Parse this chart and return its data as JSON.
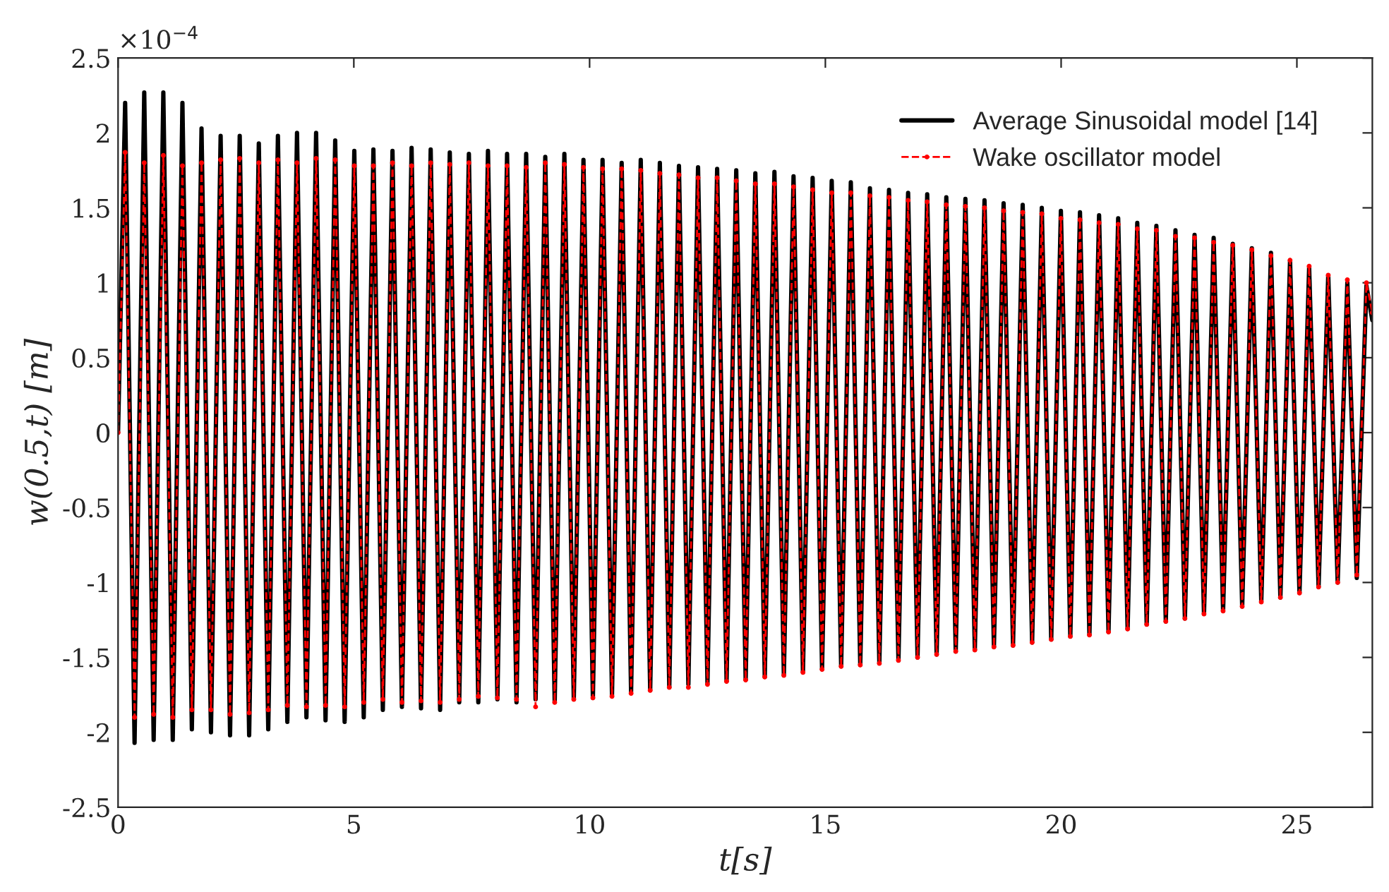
{
  "chart_data": {
    "type": "line",
    "xlabel": "t[s]",
    "ylabel": "w(0.5,t) [m]",
    "annotations": [
      "×10$^{−4}$"
    ],
    "xlim": [
      0,
      26.6
    ],
    "xticks": [
      0,
      5,
      10,
      15,
      20,
      25
    ],
    "ylim": [
      -2.5,
      2.5
    ],
    "yticks": [
      -2.5,
      -2,
      -1.5,
      -1,
      -0.5,
      0,
      0.5,
      1,
      1.5,
      2,
      2.5
    ],
    "grid": false,
    "legend": "top right",
    "x": [
      0,
      0.15,
      0.35,
      0.555,
      0.755,
      0.96,
      1.16,
      1.365,
      1.565,
      1.77,
      1.97,
      2.175,
      2.375,
      2.58,
      2.78,
      2.985,
      3.185,
      3.39,
      3.59,
      3.795,
      3.995,
      4.2,
      4.4,
      4.605,
      4.805,
      5.01,
      5.21,
      5.415,
      5.615,
      5.82,
      6.02,
      6.225,
      6.425,
      6.63,
      6.83,
      7.035,
      7.235,
      7.44,
      7.64,
      7.845,
      8.045,
      8.25,
      8.45,
      8.655,
      8.855,
      9.06,
      9.26,
      9.465,
      9.665,
      9.87,
      10.07,
      10.275,
      10.475,
      10.68,
      10.88,
      11.085,
      11.285,
      11.49,
      11.69,
      11.895,
      12.095,
      12.3,
      12.5,
      12.705,
      12.905,
      13.11,
      13.31,
      13.515,
      13.715,
      13.92,
      14.12,
      14.325,
      14.525,
      14.73,
      14.93,
      15.135,
      15.335,
      15.54,
      15.74,
      15.945,
      16.145,
      16.35,
      16.55,
      16.755,
      16.955,
      17.16,
      17.36,
      17.565,
      17.765,
      17.97,
      18.17,
      18.375,
      18.575,
      18.78,
      18.98,
      19.185,
      19.385,
      19.59,
      19.79,
      19.995,
      20.195,
      20.4,
      20.6,
      20.805,
      21.005,
      21.21,
      21.41,
      21.615,
      21.815,
      22.02,
      22.22,
      22.425,
      22.625,
      22.83,
      23.03,
      23.235,
      23.435,
      23.64,
      23.84,
      24.045,
      24.245,
      24.45,
      24.65,
      24.855,
      25.055,
      25.26,
      25.46,
      25.665,
      25.865,
      26.07,
      26.27,
      26.475,
      26.6
    ],
    "series": [
      {
        "name": "Average Sinusoidal model [14]",
        "color": "#000000",
        "line_style": "solid",
        "marker": "none",
        "values": [
          0,
          2.2,
          -2.07,
          2.27,
          -2.05,
          2.27,
          -2.05,
          2.2,
          -1.98,
          2.03,
          -2.0,
          1.98,
          -2.02,
          1.98,
          -2.02,
          1.93,
          -1.98,
          1.98,
          -1.93,
          2.0,
          -1.9,
          2.0,
          -1.92,
          1.95,
          -1.93,
          1.88,
          -1.9,
          1.89,
          -1.85,
          1.88,
          -1.83,
          1.9,
          -1.84,
          1.89,
          -1.85,
          1.87,
          -1.8,
          1.86,
          -1.8,
          1.88,
          -1.78,
          1.86,
          -1.8,
          1.86,
          -1.78,
          1.84,
          -1.8,
          1.86,
          -1.78,
          1.82,
          -1.77,
          1.82,
          -1.75,
          1.8,
          -1.73,
          1.82,
          -1.72,
          1.8,
          -1.7,
          1.78,
          -1.68,
          1.77,
          -1.67,
          1.76,
          -1.66,
          1.75,
          -1.65,
          1.73,
          -1.63,
          1.74,
          -1.62,
          1.71,
          -1.6,
          1.7,
          -1.58,
          1.68,
          -1.56,
          1.67,
          -1.55,
          1.63,
          -1.54,
          1.62,
          -1.52,
          1.6,
          -1.5,
          1.59,
          -1.48,
          1.57,
          -1.46,
          1.56,
          -1.45,
          1.55,
          -1.43,
          1.53,
          -1.42,
          1.52,
          -1.4,
          1.5,
          -1.38,
          1.48,
          -1.36,
          1.47,
          -1.35,
          1.45,
          -1.33,
          1.43,
          -1.31,
          1.4,
          -1.28,
          1.38,
          -1.26,
          1.35,
          -1.24,
          1.32,
          -1.21,
          1.3,
          -1.19,
          1.26,
          -1.16,
          1.23,
          -1.13,
          1.2,
          -1.1,
          1.15,
          -1.07,
          1.1,
          -1.03,
          1.05,
          -1.0,
          1.0,
          -0.97,
          0.98,
          0.75
        ]
      },
      {
        "name": "Wake oscillator model",
        "color": "#ff0000",
        "line_style": "dashed",
        "marker": "circle",
        "values": [
          0,
          1.87,
          -1.9,
          1.8,
          -1.88,
          1.85,
          -1.9,
          1.78,
          -1.85,
          1.8,
          -1.85,
          1.82,
          -1.88,
          1.83,
          -1.87,
          1.8,
          -1.85,
          1.82,
          -1.82,
          1.8,
          -1.83,
          1.83,
          -1.82,
          1.82,
          -1.83,
          1.78,
          -1.8,
          1.78,
          -1.78,
          1.8,
          -1.8,
          1.78,
          -1.79,
          1.8,
          -1.8,
          1.79,
          -1.78,
          1.8,
          -1.76,
          1.78,
          -1.77,
          1.78,
          -1.78,
          1.77,
          -1.83,
          1.8,
          -1.8,
          1.79,
          -1.78,
          1.77,
          -1.77,
          1.76,
          -1.76,
          1.76,
          -1.74,
          1.75,
          -1.72,
          1.73,
          -1.7,
          1.72,
          -1.7,
          1.7,
          -1.68,
          1.7,
          -1.66,
          1.68,
          -1.65,
          1.66,
          -1.63,
          1.66,
          -1.62,
          1.64,
          -1.6,
          1.62,
          -1.58,
          1.6,
          -1.56,
          1.6,
          -1.55,
          1.58,
          -1.54,
          1.57,
          -1.52,
          1.55,
          -1.5,
          1.54,
          -1.48,
          1.52,
          -1.46,
          1.51,
          -1.45,
          1.5,
          -1.43,
          1.48,
          -1.42,
          1.47,
          -1.4,
          1.46,
          -1.38,
          1.43,
          -1.36,
          1.42,
          -1.35,
          1.4,
          -1.33,
          1.39,
          -1.31,
          1.36,
          -1.28,
          1.35,
          -1.26,
          1.31,
          -1.24,
          1.3,
          -1.21,
          1.27,
          -1.19,
          1.25,
          -1.16,
          1.22,
          -1.13,
          1.18,
          -1.1,
          1.15,
          -1.07,
          1.11,
          -1.03,
          1.05,
          -1.0,
          1.02,
          -0.95,
          1.0,
          0.8
        ]
      }
    ]
  }
}
